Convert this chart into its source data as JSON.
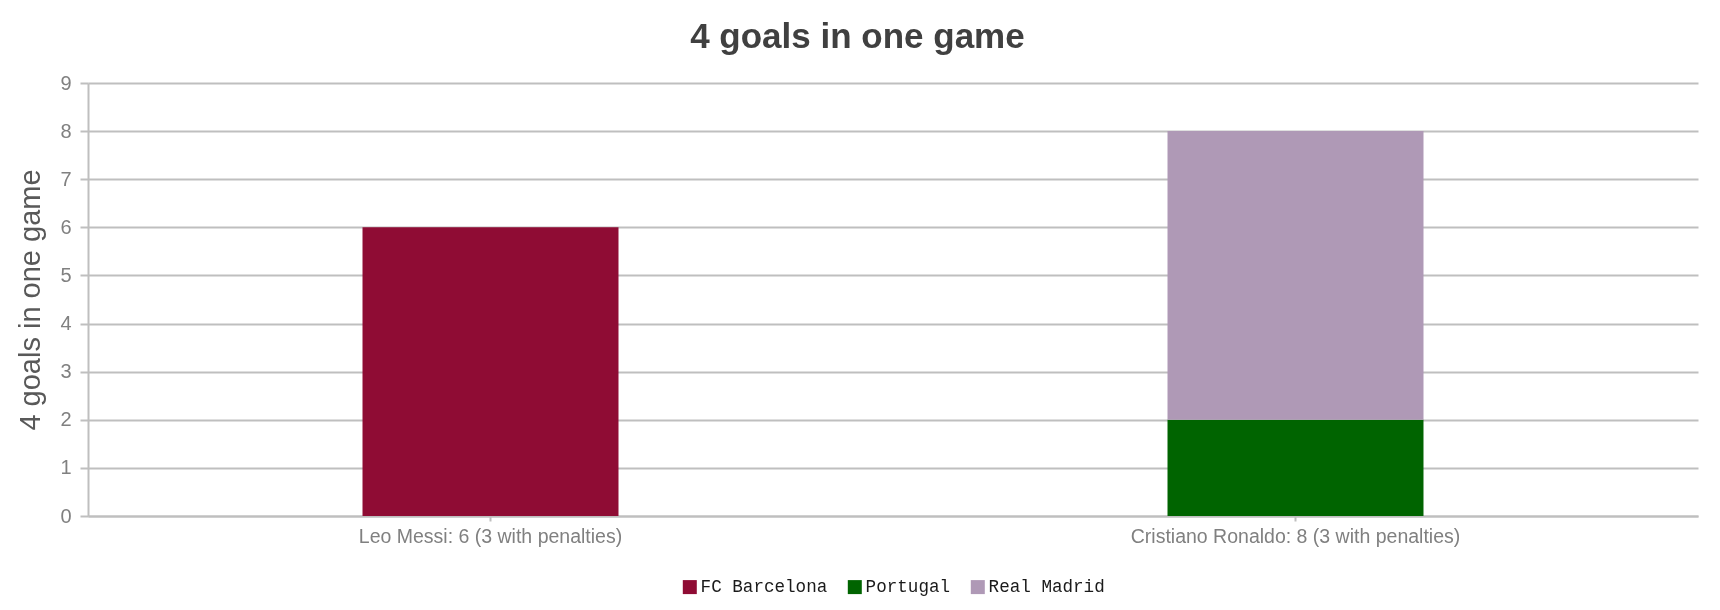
{
  "chart_data": {
    "type": "bar",
    "title": "4 goals in one game",
    "ylabel": "4 goals in one game",
    "categories": [
      "Leo Messi: 6 (3 with penalties)",
      "Cristiano Ronaldo: 8 (3 with penalties)"
    ],
    "series": [
      {
        "name": "FC Barcelona",
        "color": "#8f0c34",
        "values": [
          6,
          null
        ]
      },
      {
        "name": "Portugal",
        "color": "#006400",
        "values": [
          null,
          2
        ]
      },
      {
        "name": "Real Madrid",
        "color": "#af99b6",
        "values": [
          null,
          6
        ]
      }
    ],
    "stacked": true,
    "ylim": [
      0,
      9
    ],
    "yticks": [
      0,
      1,
      2,
      3,
      4,
      5,
      6,
      7,
      8,
      9
    ],
    "grid": "y",
    "legend": "bottom"
  }
}
